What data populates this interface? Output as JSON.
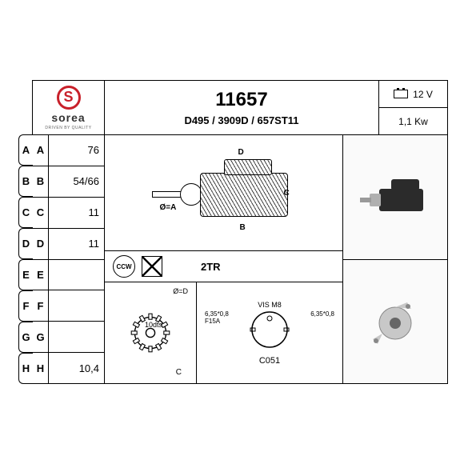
{
  "brand": {
    "name": "sorea",
    "tagline": "DRIVEN BY QUALITY",
    "color": "#c8202a"
  },
  "part_number": "11657",
  "cross_refs": "D495 / 3909D / 657ST11",
  "power": {
    "voltage": "12 V",
    "output": "1,1 Kw"
  },
  "specs": [
    {
      "key": "A",
      "val": "76"
    },
    {
      "key": "B",
      "val": "54/66"
    },
    {
      "key": "C",
      "val": "11"
    },
    {
      "key": "D",
      "val": "11"
    },
    {
      "key": "E",
      "val": ""
    },
    {
      "key": "F",
      "val": ""
    },
    {
      "key": "G",
      "val": ""
    },
    {
      "key": "H",
      "val": "10,4"
    }
  ],
  "rotation": {
    "direction": "CCW",
    "label": "2TR"
  },
  "pinion": {
    "teeth_label": "10dts",
    "diameter_label": "Ø=D",
    "shaft_label": "C"
  },
  "connector": {
    "top_label": "VIS M8",
    "left_label": "6,35*0,8",
    "left_sub": "F15A",
    "right_label": "6,35*0,8",
    "code": "C051"
  },
  "diagram_labels": {
    "A": "Ø=A",
    "B": "B",
    "C": "C",
    "D": "D"
  },
  "colors": {
    "border": "#000000",
    "background": "#ffffff",
    "starter_body": "#2b2b2b",
    "starter_alu": "#b0b0b0"
  }
}
